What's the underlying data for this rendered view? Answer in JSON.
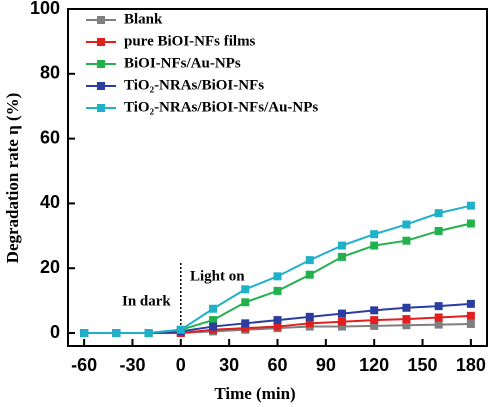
{
  "chart_data": {
    "type": "line",
    "xlabel": "Time (min)",
    "ylabel": "Degradation rate η (%)",
    "x": [
      -60,
      -40,
      -20,
      0,
      20,
      40,
      60,
      80,
      100,
      120,
      140,
      160,
      180
    ],
    "series": [
      {
        "name": "Blank",
        "color": "#7f7f7f",
        "values": [
          0,
          0,
          0,
          0,
          0.5,
          1,
          1.5,
          2,
          2,
          2.2,
          2.4,
          2.6,
          2.8
        ]
      },
      {
        "name": "pure BiOI-NFs films",
        "color": "#e0201e",
        "values": [
          0,
          0,
          0,
          0,
          1,
          1.5,
          2,
          3,
          3.5,
          4,
          4.3,
          4.8,
          5.3
        ]
      },
      {
        "name": "BiOI-NFs/Au-NPs",
        "color": "#22b14c",
        "values": [
          0,
          0,
          0,
          1,
          4,
          9.5,
          13,
          18,
          23.5,
          27,
          28.5,
          31.5,
          33.8
        ]
      },
      {
        "name": "TiO₂-NRAs/BiOI-NFs",
        "color": "#2b3ea0",
        "values": [
          0,
          0,
          0,
          0.5,
          2,
          3,
          4,
          5,
          6,
          7,
          7.8,
          8.3,
          9
        ]
      },
      {
        "name": "TiO₂-NRAs/BiOI-NFs/Au-NPs",
        "color": "#1fb1c9",
        "values": [
          0,
          0,
          0,
          1,
          7.5,
          13.5,
          17.5,
          22.5,
          27,
          30.5,
          33.5,
          37,
          39.3
        ]
      }
    ],
    "xlim": [
      -70,
      190
    ],
    "xticks": [
      -60,
      -30,
      0,
      30,
      60,
      90,
      120,
      150,
      180
    ],
    "ylim": [
      -4,
      100
    ],
    "yticks": [
      0,
      20,
      40,
      60,
      80,
      100
    ],
    "annotations": [
      "Light on",
      "In dark"
    ]
  }
}
